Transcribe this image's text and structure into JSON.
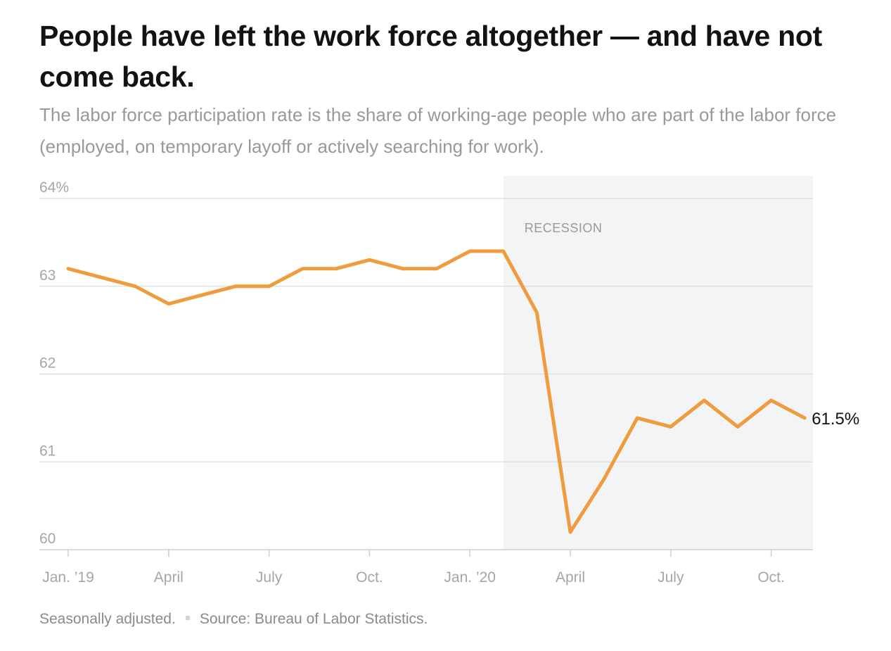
{
  "title": "People have left the work force altogether — and have not come back.",
  "subtitle": "The labor force participation rate is the share of working-age people who are part of the labor force (employed, on temporary layoff or actively searching for work).",
  "footer": {
    "note": "Seasonally adjusted.",
    "source": "Source: Bureau of Labor Statistics."
  },
  "colors": {
    "line": "#ef9c3f",
    "shade": "#f3f4f5",
    "grid": "#dcdcdc"
  },
  "chart_data": {
    "type": "line",
    "title": "People have left the work force altogether — and have not come back.",
    "ylabel": "",
    "xlabel": "",
    "ylim": [
      60,
      64
    ],
    "y_ticks": [
      {
        "value": 64,
        "label": "64%"
      },
      {
        "value": 63,
        "label": "63"
      },
      {
        "value": 62,
        "label": "62"
      },
      {
        "value": 61,
        "label": "61"
      },
      {
        "value": 60,
        "label": "60"
      }
    ],
    "x": [
      "2019-01",
      "2019-02",
      "2019-03",
      "2019-04",
      "2019-05",
      "2019-06",
      "2019-07",
      "2019-08",
      "2019-09",
      "2019-10",
      "2019-11",
      "2019-12",
      "2020-01",
      "2020-02",
      "2020-03",
      "2020-04",
      "2020-05",
      "2020-06",
      "2020-07",
      "2020-08",
      "2020-09",
      "2020-10",
      "2020-11"
    ],
    "x_ticks": [
      {
        "x": "2019-01",
        "label": "Jan. ’19"
      },
      {
        "x": "2019-04",
        "label": "April"
      },
      {
        "x": "2019-07",
        "label": "July"
      },
      {
        "x": "2019-10",
        "label": "Oct."
      },
      {
        "x": "2020-01",
        "label": "Jan. ’20"
      },
      {
        "x": "2020-04",
        "label": "April"
      },
      {
        "x": "2020-07",
        "label": "July"
      },
      {
        "x": "2020-10",
        "label": "Oct."
      }
    ],
    "series": [
      {
        "values": [
          63.2,
          63.1,
          63.0,
          62.8,
          62.9,
          63.0,
          63.0,
          63.2,
          63.2,
          63.3,
          63.2,
          63.2,
          63.4,
          63.4,
          62.7,
          60.2,
          60.8,
          61.5,
          61.4,
          61.7,
          61.4,
          61.7,
          61.5
        ]
      }
    ],
    "shaded_region": {
      "label": "RECESSION",
      "start": "2020-02",
      "end": "2020-11"
    },
    "end_label": "61.5%",
    "grid": true
  }
}
